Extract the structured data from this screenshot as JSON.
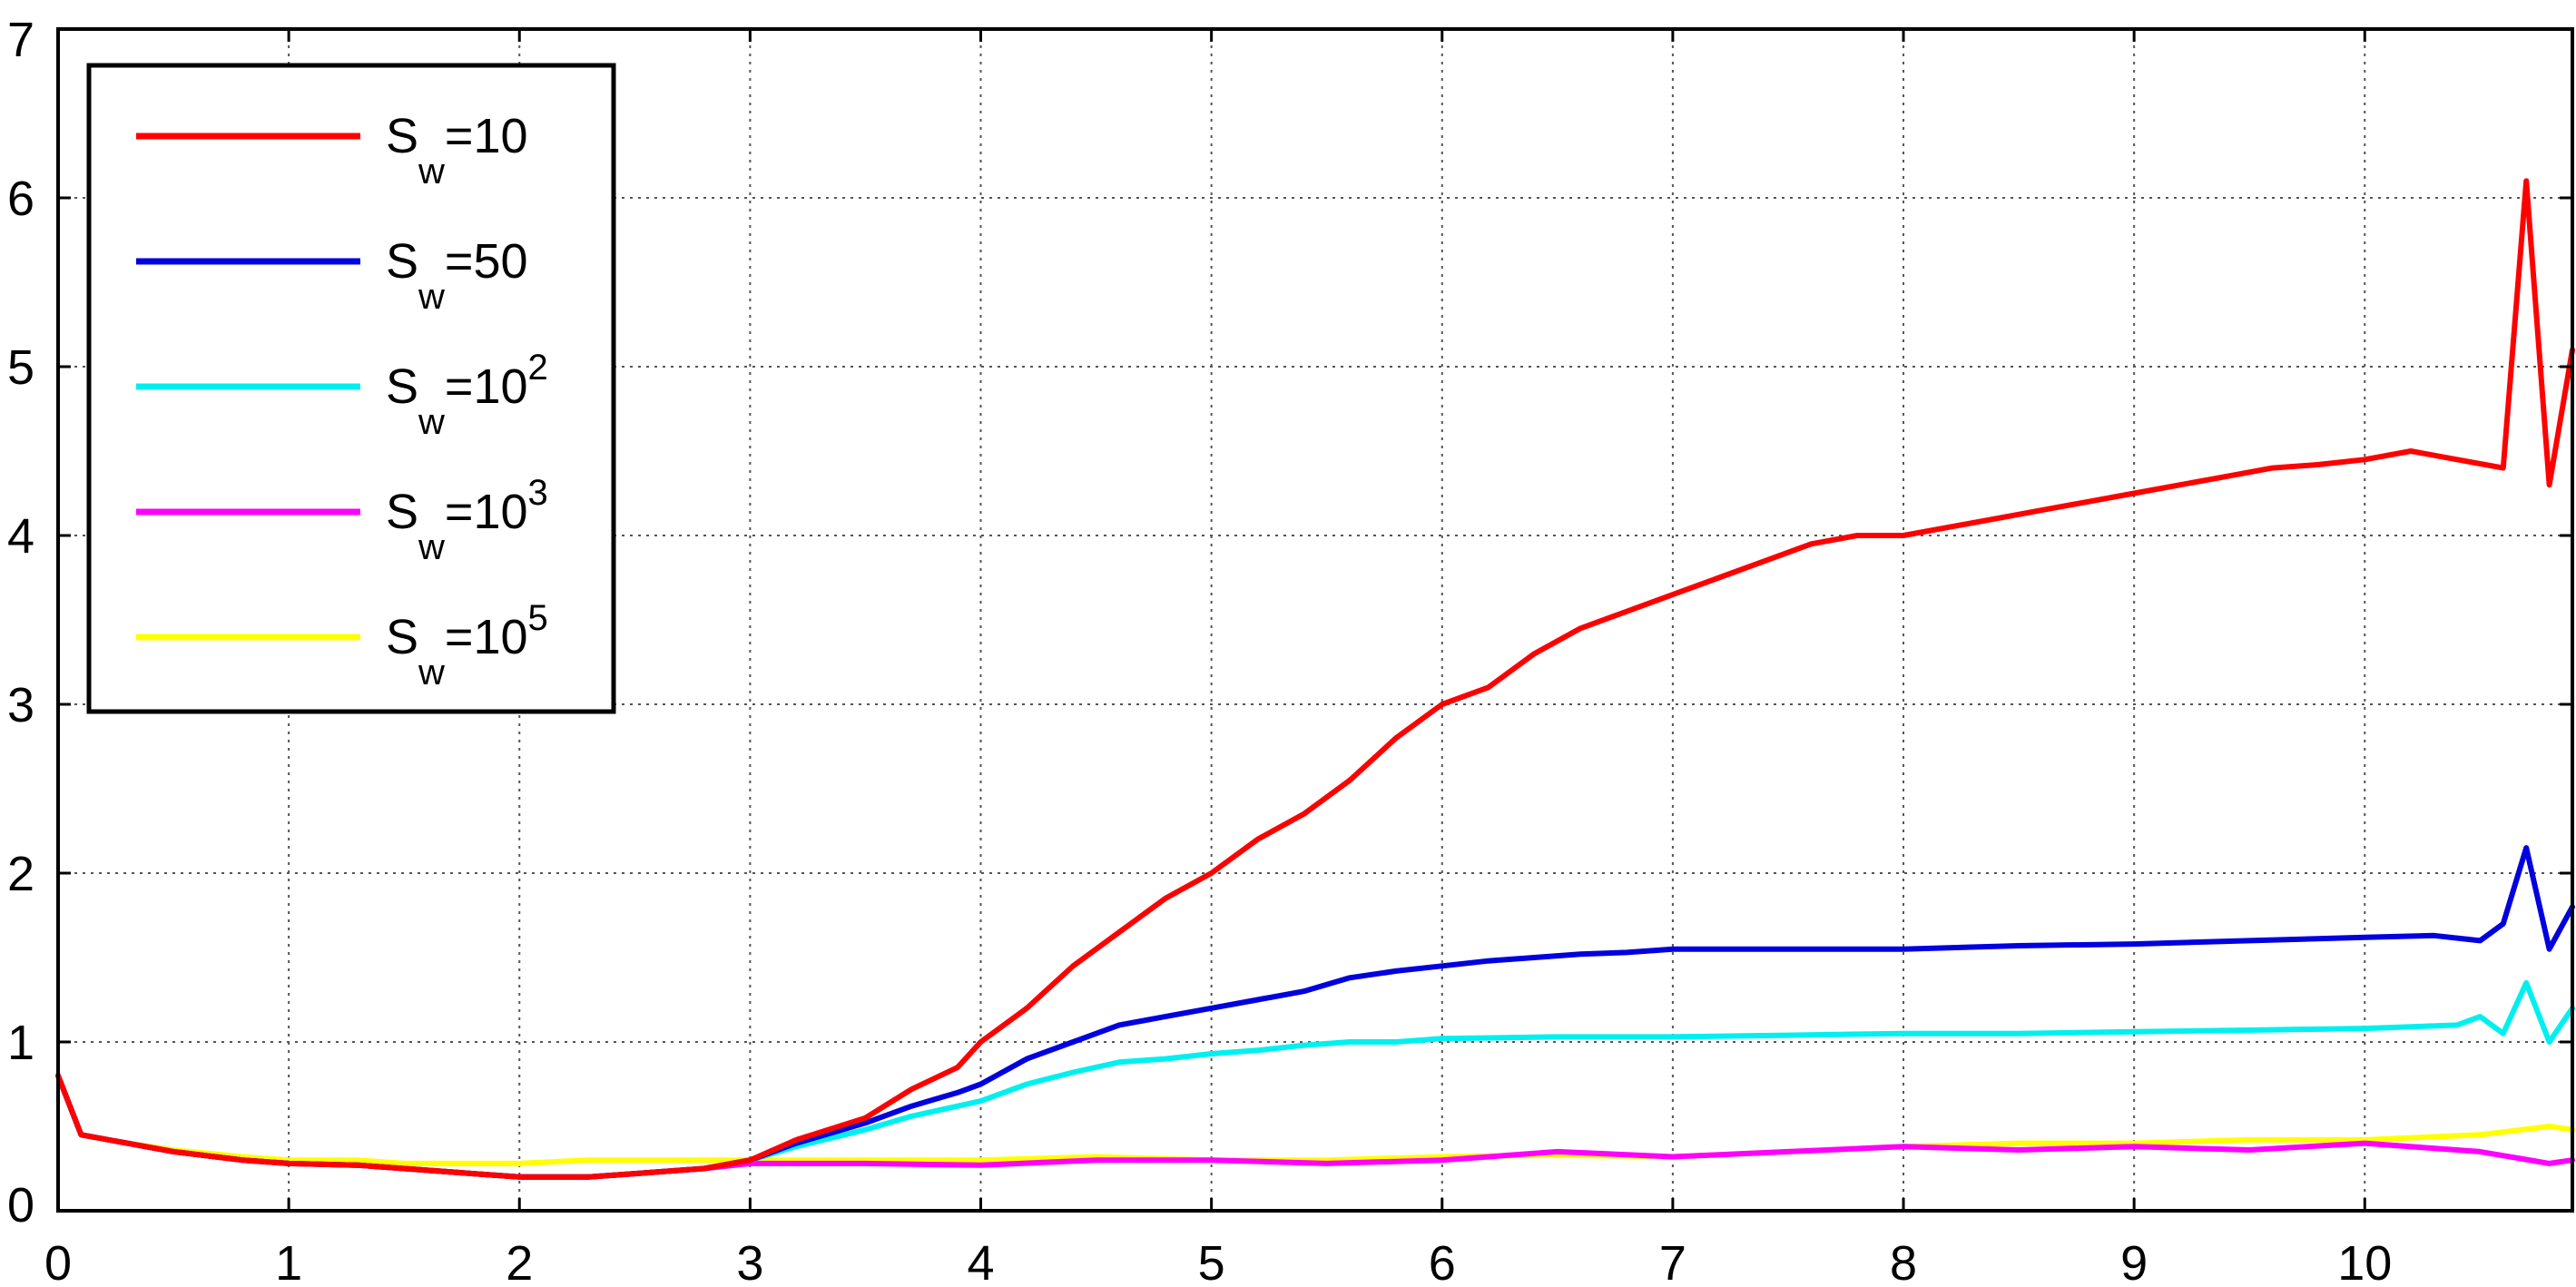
{
  "chart_data": {
    "type": "line",
    "title": "",
    "xlabel": "",
    "ylabel": "",
    "xlim": [
      0,
      10.9
    ],
    "ylim": [
      0,
      7
    ],
    "grid": true,
    "legend_position": "top-left",
    "x_ticks": [
      "0",
      "1",
      "2",
      "3",
      "4",
      "5",
      "6",
      "7",
      "8",
      "9",
      "10"
    ],
    "y_ticks": [
      "0",
      "1",
      "2",
      "3",
      "4",
      "5",
      "6",
      "7"
    ],
    "series": [
      {
        "name": "Sw=10",
        "legend": {
          "base": "S",
          "sub": "w",
          "rest": "=10",
          "sup": ""
        },
        "color": "#ff0000",
        "x": [
          0.0,
          0.1,
          0.3,
          0.5,
          0.8,
          1.0,
          1.3,
          1.5,
          1.8,
          2.0,
          2.3,
          2.5,
          2.8,
          3.0,
          3.2,
          3.5,
          3.7,
          3.9,
          4.0,
          4.2,
          4.4,
          4.6,
          4.8,
          5.0,
          5.2,
          5.4,
          5.6,
          5.8,
          6.0,
          6.2,
          6.4,
          6.6,
          6.8,
          7.0,
          7.2,
          7.4,
          7.6,
          7.8,
          8.0,
          8.2,
          8.4,
          8.6,
          8.8,
          9.0,
          9.2,
          9.4,
          9.6,
          9.8,
          10.0,
          10.2,
          10.4,
          10.6,
          10.7,
          10.8,
          10.9
        ],
        "values": [
          0.8,
          0.45,
          0.4,
          0.35,
          0.3,
          0.28,
          0.27,
          0.25,
          0.22,
          0.2,
          0.2,
          0.22,
          0.25,
          0.3,
          0.42,
          0.55,
          0.72,
          0.85,
          1.0,
          1.2,
          1.45,
          1.65,
          1.85,
          2.0,
          2.2,
          2.35,
          2.55,
          2.8,
          3.0,
          3.1,
          3.3,
          3.45,
          3.55,
          3.65,
          3.75,
          3.85,
          3.95,
          4.0,
          4.0,
          4.05,
          4.1,
          4.15,
          4.2,
          4.25,
          4.3,
          4.35,
          4.4,
          4.42,
          4.45,
          4.5,
          4.45,
          4.4,
          6.1,
          4.3,
          5.1
        ]
      },
      {
        "name": "Sw=50",
        "legend": {
          "base": "S",
          "sub": "w",
          "rest": "=50",
          "sup": ""
        },
        "color": "#0000e0",
        "x": [
          0.0,
          0.1,
          0.3,
          0.5,
          0.8,
          1.0,
          1.3,
          1.5,
          1.8,
          2.0,
          2.3,
          2.5,
          2.8,
          3.0,
          3.2,
          3.5,
          3.7,
          3.9,
          4.0,
          4.2,
          4.4,
          4.6,
          4.8,
          5.0,
          5.2,
          5.4,
          5.6,
          5.8,
          6.0,
          6.2,
          6.4,
          6.6,
          6.8,
          7.0,
          7.5,
          8.0,
          8.5,
          9.0,
          9.5,
          10.0,
          10.3,
          10.5,
          10.6,
          10.7,
          10.8,
          10.9
        ],
        "values": [
          0.8,
          0.45,
          0.4,
          0.35,
          0.3,
          0.28,
          0.27,
          0.25,
          0.22,
          0.2,
          0.2,
          0.22,
          0.25,
          0.3,
          0.4,
          0.52,
          0.62,
          0.7,
          0.75,
          0.9,
          1.0,
          1.1,
          1.15,
          1.2,
          1.25,
          1.3,
          1.38,
          1.42,
          1.45,
          1.48,
          1.5,
          1.52,
          1.53,
          1.55,
          1.55,
          1.55,
          1.57,
          1.58,
          1.6,
          1.62,
          1.63,
          1.6,
          1.7,
          2.15,
          1.55,
          1.8
        ]
      },
      {
        "name": "Sw=10^2",
        "legend": {
          "base": "S",
          "sub": "w",
          "rest": "=10",
          "sup": "2"
        },
        "color": "#00f0f0",
        "x": [
          0.0,
          0.1,
          0.3,
          0.5,
          0.8,
          1.0,
          1.3,
          1.5,
          1.8,
          2.0,
          2.3,
          2.5,
          2.8,
          3.0,
          3.2,
          3.5,
          3.7,
          3.9,
          4.0,
          4.2,
          4.4,
          4.6,
          4.8,
          5.0,
          5.2,
          5.4,
          5.6,
          5.8,
          6.0,
          6.5,
          7.0,
          7.5,
          8.0,
          8.5,
          9.0,
          9.5,
          10.0,
          10.4,
          10.5,
          10.6,
          10.7,
          10.8,
          10.9
        ],
        "values": [
          0.8,
          0.45,
          0.4,
          0.35,
          0.3,
          0.28,
          0.27,
          0.25,
          0.22,
          0.2,
          0.2,
          0.22,
          0.25,
          0.3,
          0.38,
          0.48,
          0.56,
          0.62,
          0.65,
          0.75,
          0.82,
          0.88,
          0.9,
          0.93,
          0.95,
          0.98,
          1.0,
          1.0,
          1.02,
          1.03,
          1.03,
          1.04,
          1.05,
          1.05,
          1.06,
          1.07,
          1.08,
          1.1,
          1.15,
          1.05,
          1.35,
          1.0,
          1.2
        ]
      },
      {
        "name": "Sw=10^3",
        "legend": {
          "base": "S",
          "sub": "w",
          "rest": "=10",
          "sup": "3"
        },
        "color": "#ff00ff",
        "x": [
          0.0,
          0.1,
          0.3,
          0.5,
          0.8,
          1.0,
          1.3,
          1.5,
          1.8,
          2.0,
          2.3,
          2.5,
          2.8,
          3.0,
          3.5,
          4.0,
          4.5,
          5.0,
          5.5,
          6.0,
          6.5,
          7.0,
          7.5,
          8.0,
          8.5,
          9.0,
          9.5,
          10.0,
          10.5,
          10.8,
          10.9
        ],
        "values": [
          0.8,
          0.45,
          0.4,
          0.35,
          0.3,
          0.28,
          0.27,
          0.25,
          0.22,
          0.2,
          0.2,
          0.22,
          0.25,
          0.28,
          0.28,
          0.27,
          0.3,
          0.3,
          0.28,
          0.3,
          0.35,
          0.32,
          0.35,
          0.38,
          0.36,
          0.38,
          0.36,
          0.4,
          0.35,
          0.28,
          0.3
        ]
      },
      {
        "name": "Sw=10^5",
        "legend": {
          "base": "S",
          "sub": "w",
          "rest": "=10",
          "sup": "5"
        },
        "color": "#ffff00",
        "x": [
          0.0,
          0.1,
          0.3,
          0.5,
          0.8,
          1.0,
          1.3,
          1.5,
          1.8,
          2.0,
          2.3,
          2.5,
          2.8,
          3.0,
          3.5,
          4.0,
          4.5,
          5.0,
          5.5,
          6.0,
          6.5,
          7.0,
          7.5,
          8.0,
          8.5,
          9.0,
          9.5,
          10.0,
          10.5,
          10.8,
          10.9
        ],
        "values": [
          0.8,
          0.45,
          0.4,
          0.36,
          0.32,
          0.3,
          0.3,
          0.28,
          0.28,
          0.28,
          0.3,
          0.3,
          0.3,
          0.3,
          0.3,
          0.3,
          0.32,
          0.3,
          0.3,
          0.32,
          0.33,
          0.32,
          0.35,
          0.38,
          0.4,
          0.4,
          0.42,
          0.42,
          0.45,
          0.5,
          0.48
        ]
      }
    ]
  }
}
